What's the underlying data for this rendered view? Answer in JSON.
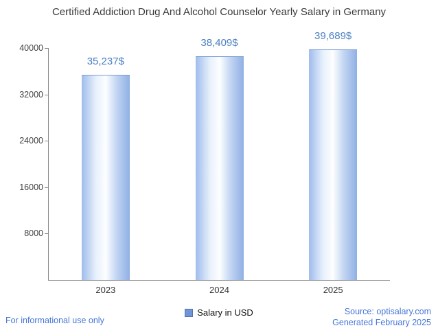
{
  "chart_data": {
    "type": "bar",
    "title": "Certified Addiction Drug And Alcohol Counselor Yearly Salary in Germany",
    "categories": [
      "2023",
      "2024",
      "2025"
    ],
    "series": [
      {
        "name": "Salary in USD",
        "values": [
          35237,
          38409,
          39689
        ],
        "value_labels": [
          "35,237$",
          "38,409$",
          "39,689$"
        ]
      }
    ],
    "xlabel": "",
    "ylabel": "",
    "ylim": [
      0,
      40000
    ],
    "yticks": [
      8000,
      16000,
      24000,
      32000,
      40000
    ],
    "grid": false,
    "legend_position": "bottom",
    "legend_label": "Salary in USD"
  },
  "colors": {
    "value_label": "#4a7fc1",
    "bar_edge": "#8fb0e4",
    "bar_highlight": "#fdfeff",
    "footer_link": "#4576d8",
    "axis": "#8a8a8a",
    "title_text": "#3a3a3a"
  },
  "footer": {
    "disclaimer": "For informational use only",
    "source": "Source: optisalary.com",
    "generated": "Generated February 2025"
  }
}
